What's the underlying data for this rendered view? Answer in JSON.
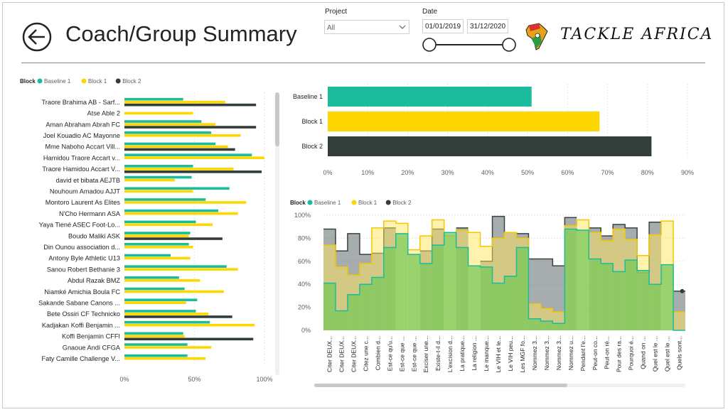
{
  "header": {
    "title": "Coach/Group Summary",
    "project_label": "Project",
    "project_value": "All",
    "date_label": "Date",
    "date_start": "01/01/2019",
    "date_end": "31/12/2020",
    "logo_text": "TACKLE AFRICA"
  },
  "legend": {
    "title": "Block",
    "items": [
      {
        "label": "Baseline 1",
        "color": "#1ABC9C"
      },
      {
        "label": "Block 1",
        "color": "#FFD700"
      },
      {
        "label": "Block 2",
        "color": "#333D3A"
      }
    ]
  },
  "colors": {
    "baseline": "#1ABC9C",
    "block1": "#FFD700",
    "block2": "#333D3A"
  },
  "chart_data": [
    {
      "type": "bar",
      "orientation": "horizontal",
      "categories": [
        "Traore Brahima AB - Sarf...",
        "Atse Able 2",
        "Aman Abraham Abrah FC",
        "Joel Kouadio AC Mayonne",
        "Mme Naboho Accart Vill...",
        "Hamidou Traore Accart v...",
        "Traore Hamidou Accart V...",
        "david et bibata AEJTB",
        "Nouhoum Amadou AJJT",
        "Montoro Laurent As Elites",
        "N'Cho Hermann ASA",
        "Yaya Tiené ASEC Foot-Lo...",
        "Boudo Maliki ASK",
        "Din Ounou association d...",
        "Antony Byle Athletic U13",
        "Sanou Robert Bethanie 3",
        "Abdul Razak BMZ",
        "Niamké Amichia Boula FC",
        "Sakande Sabane Canons ...",
        "Bete Ossiri CF Technicko",
        "Kadjakan Koffi Benjamin ...",
        "Koffi Benjamin CFFI",
        "Gnaoue Andi CFGA",
        "Faty Camille Challenge V..."
      ],
      "series": [
        {
          "name": "Baseline 1",
          "values": [
            42,
            null,
            55,
            62,
            65,
            91,
            49,
            48,
            75,
            58,
            67,
            51,
            47,
            46,
            33,
            73,
            39,
            43,
            52,
            51,
            61,
            42,
            45,
            45
          ]
        },
        {
          "name": "Block 1",
          "values": [
            72,
            49,
            65,
            83,
            74,
            100,
            78,
            36,
            49,
            87,
            81,
            63,
            46,
            49,
            47,
            81,
            54,
            71,
            44,
            60,
            93,
            43,
            62,
            58
          ]
        },
        {
          "name": "Block 2",
          "values": [
            94,
            null,
            94,
            null,
            79,
            null,
            98,
            null,
            null,
            null,
            null,
            null,
            70,
            null,
            null,
            null,
            null,
            null,
            null,
            77,
            null,
            92,
            null,
            null
          ]
        }
      ],
      "xticks": [
        "0%",
        "50%",
        "100%"
      ],
      "xlim": [
        0,
        100
      ]
    },
    {
      "type": "bar",
      "orientation": "horizontal",
      "categories": [
        "Baseline 1",
        "Block 1",
        "Block 2"
      ],
      "values": [
        51,
        68,
        81
      ],
      "xticks": [
        "0%",
        "10%",
        "20%",
        "30%",
        "40%",
        "50%",
        "60%",
        "70%",
        "80%",
        "90%"
      ],
      "xlim": [
        0,
        90
      ]
    },
    {
      "type": "area",
      "categories": [
        "Citer DEUX...",
        "Citer DEUX...",
        "Citer DEUX...",
        "Citez une c...",
        "Combien d...",
        "Est-ce qu'u...",
        "Est-ce que ...",
        "Est-ce que ...",
        "Exciser une...",
        "Existe-t-il d...",
        "L'excision d...",
        "La pratique...",
        "La religion ...",
        "Le manque...",
        "Le VIH et le...",
        "Le VIH peu...",
        "Les MGF fo...",
        "Nommez 3...",
        "Nommez 3...",
        "Nommez 3...",
        "Nommez u...",
        "Pendant l'e...",
        "Peut-on co...",
        "Peut-on ré...",
        "Pour des ra...",
        "Pourquoi é...",
        "Quand on ...",
        "Quel est le ...",
        "Quel est le ...",
        "Quels sont..."
      ],
      "series": [
        {
          "name": "Baseline 1",
          "values": [
            41,
            17,
            31,
            40,
            46,
            72,
            84,
            66,
            58,
            74,
            85,
            72,
            56,
            55,
            41,
            47,
            72,
            10,
            8,
            6,
            88,
            87,
            62,
            58,
            51,
            61,
            52,
            40,
            57,
            0
          ]
        },
        {
          "name": "Block 1",
          "values": [
            74,
            55,
            48,
            58,
            89,
            95,
            93,
            70,
            82,
            96,
            82,
            87,
            85,
            73,
            80,
            85,
            80,
            23,
            19,
            16,
            91,
            96,
            85,
            78,
            88,
            79,
            65,
            83,
            95,
            16
          ]
        },
        {
          "name": "Block 2",
          "values": [
            88,
            69,
            84,
            66,
            67,
            89,
            null,
            null,
            69,
            88,
            null,
            89,
            null,
            60,
            99,
            85,
            84,
            62,
            62,
            56,
            98,
            null,
            89,
            82,
            92,
            89,
            50,
            94,
            null,
            34
          ]
        }
      ],
      "yticks": [
        "0%",
        "20%",
        "40%",
        "60%",
        "80%",
        "100%"
      ],
      "ylim": [
        0,
        100
      ]
    }
  ]
}
